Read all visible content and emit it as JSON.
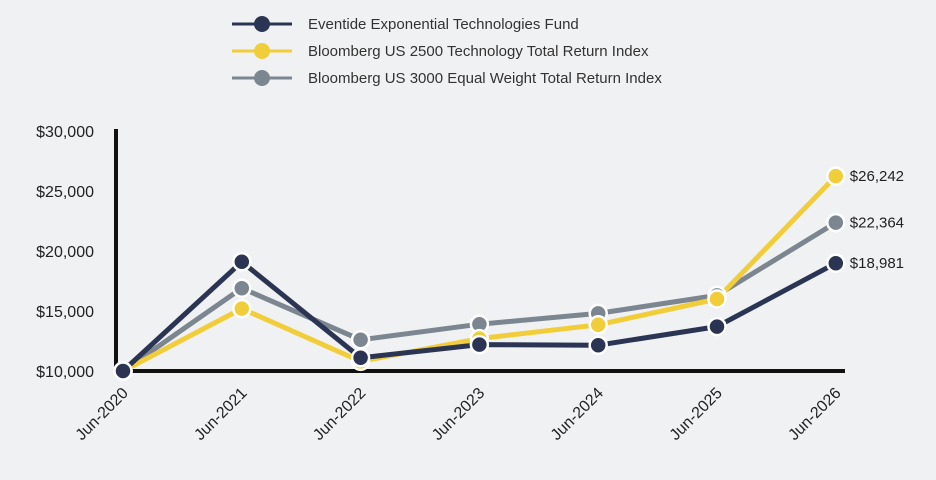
{
  "chart_data": {
    "type": "line",
    "categories": [
      "Jun-2020",
      "Jun-2021",
      "Jun-2022",
      "Jun-2023",
      "Jun-2024",
      "Jun-2025",
      "Jun-2026"
    ],
    "ylim": [
      10000,
      30000
    ],
    "yticks": [
      10000,
      15000,
      20000,
      25000,
      30000
    ],
    "ytick_labels": [
      "$10,000",
      "$15,000",
      "$20,000",
      "$25,000",
      "$30,000"
    ],
    "legend_position": "top",
    "grid": false,
    "series": [
      {
        "name": "Eventide Exponential Technologies Fund",
        "color": "#2b3553",
        "values": [
          10000,
          19100,
          11100,
          12200,
          12150,
          13700,
          18981
        ],
        "end_label": "$18,981"
      },
      {
        "name": "Bloomberg US 2500 Technology Total Return Index",
        "color": "#f2cd3a",
        "values": [
          10000,
          15200,
          10800,
          12700,
          13850,
          16000,
          26242
        ],
        "end_label": "$26,242"
      },
      {
        "name": "Bloomberg US 3000 Equal Weight Total Return Index",
        "color": "#7c8690",
        "values": [
          10000,
          16900,
          12600,
          13900,
          14800,
          16300,
          22364
        ],
        "end_label": "$22,364"
      }
    ]
  }
}
